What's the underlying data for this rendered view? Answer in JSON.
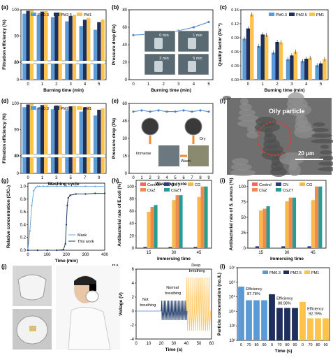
{
  "colors": {
    "c1": "#5B9BD5",
    "c2": "#1F2F5C",
    "c3": "#FFC24D",
    "ctl": "#F46A5A",
    "cn": "#2B3E7A",
    "cg": "#F6B94A",
    "cgz": "#F28A4C",
    "cgzt": "#2A9C93",
    "line": "#4F86C6",
    "mask": "#6FA8DC",
    "thiswork": "#1F3A68"
  },
  "panels": [
    {
      "id": "a",
      "label": "(a)",
      "type": "bar",
      "ylabel": "Filtration efficiency (%)",
      "xlabel": "Burning time (min)",
      "categories": [
        "0",
        "1",
        "2",
        "3",
        "4",
        "5"
      ],
      "yticks": [
        "0",
        "20",
        "80",
        "90",
        "100"
      ],
      "legend": [
        "PM0.3",
        "PM2.5",
        "PM1"
      ],
      "series": [
        [
          98.5,
          98.0,
          97.2,
          95.6,
          93.8,
          92.4
        ],
        [
          99.6,
          99.3,
          98.8,
          97.6,
          96.2,
          95.3
        ],
        [
          99.8,
          99.5,
          99.0,
          98.1,
          96.9,
          96.3
        ]
      ]
    },
    {
      "id": "b",
      "label": "(b)",
      "type": "line",
      "ylabel": "Pressure drop (Pa)",
      "xlabel": "Burning time (min)",
      "categories": [
        "0",
        "1",
        "2",
        "3",
        "4",
        "5"
      ],
      "yticks": [
        "0",
        "20",
        "40",
        "60",
        "80"
      ],
      "values": [
        51,
        52,
        53,
        56,
        60,
        66
      ],
      "inset_labels": [
        "0 min",
        "1 min",
        "3 min",
        "5 min"
      ]
    },
    {
      "id": "c",
      "label": "(c)",
      "type": "bar",
      "ylabel": "Quality factor (Pa⁻¹)",
      "xlabel": "Burning time (min)",
      "categories": [
        "0",
        "1",
        "2",
        "3",
        "4",
        "5"
      ],
      "yticks": [
        "0.00",
        "0.03",
        "0.06",
        "0.09",
        "0.12",
        "0.15"
      ],
      "legend": [
        "PM0.3",
        "PM2.5",
        "PM1"
      ],
      "series": [
        [
          0.088,
          0.072,
          0.058,
          0.044,
          0.04,
          0.031
        ],
        [
          0.11,
          0.097,
          0.081,
          0.052,
          0.045,
          0.035
        ],
        [
          0.14,
          0.096,
          0.08,
          0.06,
          0.047,
          0.044
        ]
      ]
    },
    {
      "id": "d",
      "label": "(d)",
      "type": "bar",
      "ylabel": "Filtration efficiency (%)",
      "xlabel": "Washing cycle",
      "categories": [
        "0",
        "1",
        "3",
        "5",
        "7",
        "9"
      ],
      "yticks": [
        "0",
        "20",
        "80",
        "90",
        "100"
      ],
      "legend": [
        "PM0.3",
        "PM2.5",
        "PM1"
      ],
      "series": [
        [
          98.6,
          98.2,
          97.8,
          97.4,
          96.9,
          95.4
        ],
        [
          99.6,
          99.4,
          99.2,
          98.9,
          98.5,
          97.6
        ],
        [
          99.8,
          99.6,
          99.4,
          99.1,
          98.8,
          98.1
        ]
      ]
    },
    {
      "id": "e",
      "label": "(e)",
      "type": "line",
      "ylabel": "Pressure drop (Pa)",
      "xlabel": "Washing cycle",
      "categories": [
        "0",
        "1",
        "2",
        "3",
        "4",
        "5",
        "6",
        "7",
        "8",
        "9"
      ],
      "yticks": [
        "0",
        "15",
        "30",
        "45",
        "60"
      ],
      "values": [
        53,
        54,
        53,
        54,
        53,
        53,
        54,
        53,
        54,
        53
      ],
      "inset_labels": [
        "Immerse",
        "Wash",
        "Dry"
      ]
    },
    {
      "id": "f",
      "label": "(f)",
      "type": "image",
      "annotation": "Oily particle",
      "scalebar": "20 μm"
    },
    {
      "id": "g",
      "label": "(g)",
      "type": "line",
      "ylabel": "Relative concentration (C/C₀)",
      "xlabel": "Time (min)",
      "xticks": [
        "0",
        "100",
        "200",
        "300",
        "400"
      ],
      "yticks": [
        "0.0",
        "0.2",
        "0.4",
        "0.6",
        "0.8",
        "1.0"
      ],
      "legend": [
        "Mask",
        "This work"
      ],
      "mask": {
        "x": [
          0,
          10,
          20,
          30,
          40,
          50,
          60,
          80,
          100,
          150,
          200,
          250,
          300,
          350,
          400
        ],
        "y": [
          0.0,
          0.3,
          0.7,
          0.93,
          0.98,
          1.0,
          1.0,
          1.0,
          1.0,
          1.0,
          1.0,
          1.0,
          1.0,
          1.0,
          1.0
        ]
      },
      "this_work": {
        "x": [
          0,
          50,
          100,
          150,
          185,
          195,
          200,
          205,
          210,
          220,
          250,
          300,
          350,
          400
        ],
        "y": [
          0.0,
          0.0,
          0.0,
          0.0,
          0.01,
          0.1,
          0.4,
          0.7,
          0.82,
          0.86,
          0.88,
          0.88,
          0.89,
          0.89
        ]
      }
    },
    {
      "id": "h",
      "label": "(h)",
      "type": "bar",
      "ylabel": "Antibacterial rate of E.coli (%)",
      "xlabel": "Immersing time",
      "categories": [
        "15",
        "30",
        "45"
      ],
      "yticks": [
        "0",
        "20",
        "40",
        "60",
        "80",
        "100"
      ],
      "legend": [
        "Control",
        "CN",
        "CG",
        "CGZ",
        "CGZT"
      ],
      "series": [
        [
          1,
          1,
          1
        ],
        [
          2,
          2,
          2
        ],
        [
          59,
          78,
          83
        ],
        [
          67,
          86,
          100
        ],
        [
          70,
          86,
          100
        ]
      ]
    },
    {
      "id": "i",
      "label": "(i)",
      "type": "bar",
      "ylabel": "Antibacterial rate of S. aureus (%)",
      "xlabel": "Immersing time",
      "categories": [
        "15",
        "30",
        "45"
      ],
      "yticks": [
        "0",
        "25",
        "50",
        "75",
        "100"
      ],
      "legend": [
        "Control",
        "CN",
        "CG",
        "CGZ",
        "CGZT"
      ],
      "series": [
        [
          1,
          1,
          1
        ],
        [
          3,
          3,
          3
        ],
        [
          61,
          76,
          78
        ],
        [
          64,
          82,
          100
        ],
        [
          68,
          82,
          100
        ]
      ]
    },
    {
      "id": "j",
      "label": "(j)",
      "type": "image"
    },
    {
      "id": "k",
      "label": "(k)",
      "type": "line",
      "ylabel": "Voltage (V)",
      "xlabel": "Time (s)",
      "xticks": [
        "0",
        "10",
        "20",
        "30",
        "40",
        "50",
        "60"
      ],
      "yticks": [
        "-4",
        "-2",
        "0",
        "2",
        "4",
        "6"
      ],
      "annotations": [
        "Not breathing",
        "Normal breathing",
        "Deep breathing"
      ]
    },
    {
      "id": "l",
      "label": "(l)",
      "type": "bar",
      "ylabel": "Particle concentration (no./L)",
      "xlabel": "Time (s)",
      "categories": [
        "0",
        "70",
        "80",
        "90",
        "0",
        "70",
        "80",
        "90",
        "0",
        "70",
        "80",
        "90"
      ],
      "yticks": [
        "10²",
        "10³",
        "10⁴",
        "10⁵",
        "10⁶",
        "10⁷"
      ],
      "legend": [
        "PM0.3",
        "PM2.5",
        "PM1"
      ],
      "groups": [
        [
          500000,
          58000,
          58000,
          58000
        ],
        [
          150000,
          17000,
          17000,
          17000
        ],
        [
          45000,
          3300,
          3300,
          3300
        ]
      ],
      "efficiency_labels": [
        "Efficiency 87.78%",
        "Efficiency 88.98%",
        "Efficiency 92.79%"
      ]
    }
  ]
}
